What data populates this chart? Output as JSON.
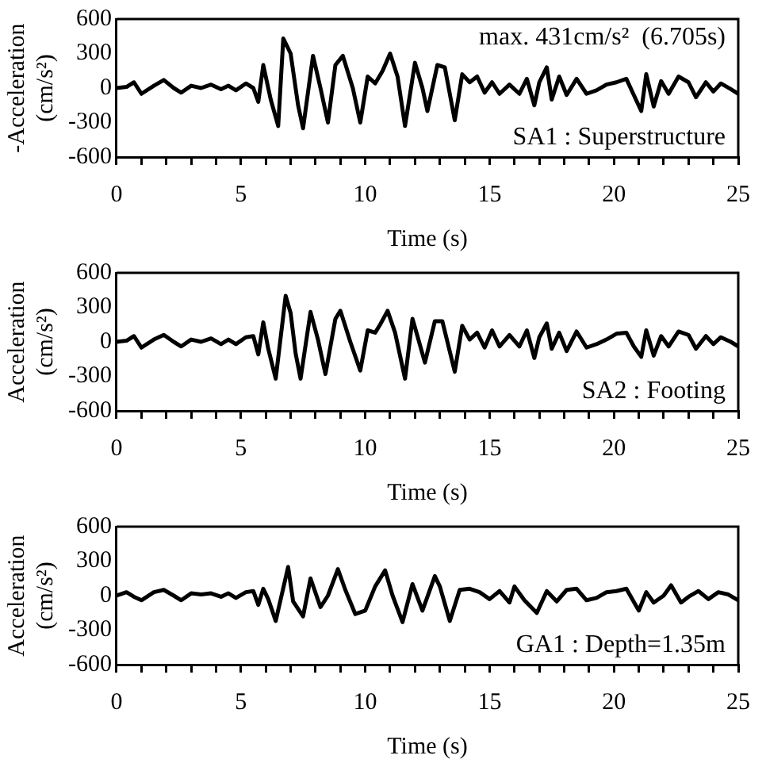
{
  "chart_data": [
    {
      "type": "line",
      "xlabel": "Time (s)",
      "ylabel": "-Acceleration\n(cm/s²)",
      "annotations": [
        "max. 431cm/s²  (6.705s)",
        "SA1 : Superstructure"
      ],
      "color": "#000000",
      "line_style": "solid",
      "marker": "none",
      "x": [
        0,
        0.4,
        0.7,
        1.0,
        1.5,
        1.9,
        2.3,
        2.6,
        3.0,
        3.4,
        3.8,
        4.2,
        4.5,
        4.8,
        5.2,
        5.5,
        5.7,
        5.9,
        6.2,
        6.5,
        6.705,
        7.0,
        7.3,
        7.5,
        7.9,
        8.2,
        8.5,
        8.8,
        9.1,
        9.5,
        9.8,
        10.1,
        10.4,
        10.7,
        11.0,
        11.3,
        11.6,
        12.0,
        12.3,
        12.5,
        12.9,
        13.2,
        13.6,
        13.9,
        14.2,
        14.5,
        14.8,
        15.1,
        15.4,
        15.8,
        16.2,
        16.5,
        16.8,
        17.0,
        17.3,
        17.5,
        17.8,
        18.1,
        18.5,
        18.9,
        19.3,
        19.7,
        20.1,
        20.5,
        20.8,
        21.1,
        21.3,
        21.6,
        21.9,
        22.2,
        22.6,
        23.0,
        23.3,
        23.7,
        24.0,
        24.3,
        24.7,
        25
      ],
      "values": [
        0,
        10,
        50,
        -50,
        20,
        70,
        0,
        -40,
        20,
        0,
        30,
        -10,
        20,
        -20,
        40,
        0,
        -120,
        200,
        -100,
        -330,
        431,
        300,
        -150,
        -350,
        280,
        0,
        -300,
        200,
        280,
        0,
        -300,
        100,
        40,
        150,
        300,
        100,
        -330,
        220,
        0,
        -200,
        200,
        180,
        -280,
        120,
        50,
        100,
        -40,
        50,
        -50,
        30,
        -50,
        80,
        -150,
        50,
        180,
        -100,
        100,
        -60,
        80,
        -50,
        -20,
        30,
        50,
        80,
        -60,
        -200,
        120,
        -160,
        60,
        -50,
        100,
        50,
        -80,
        50,
        -30,
        40,
        -10,
        -50
      ],
      "xlim": [
        0,
        25
      ],
      "xticks": [
        0,
        {
          "value": 1,
          "label": null
        },
        {
          "value": 2,
          "label": null
        },
        {
          "value": 3,
          "label": null
        },
        {
          "value": 4,
          "label": null
        },
        5,
        {
          "value": 6,
          "label": null
        },
        {
          "value": 7,
          "label": null
        },
        {
          "value": 8,
          "label": null
        },
        {
          "value": 9,
          "label": null
        },
        10,
        {
          "value": 11,
          "label": null
        },
        {
          "value": 12,
          "label": null
        },
        {
          "value": 13,
          "label": null
        },
        {
          "value": 14,
          "label": null
        },
        15,
        {
          "value": 16,
          "label": null
        },
        {
          "value": 17,
          "label": null
        },
        {
          "value": 18,
          "label": null
        },
        {
          "value": 19,
          "label": null
        },
        20,
        {
          "value": 21,
          "label": null
        },
        {
          "value": 22,
          "label": null
        },
        {
          "value": 23,
          "label": null
        },
        {
          "value": 24,
          "label": null
        },
        25
      ],
      "ylim": [
        -600,
        600
      ],
      "yticks": [
        -600,
        -300,
        0,
        300,
        600
      ]
    },
    {
      "type": "line",
      "xlabel": "Time (s)",
      "ylabel": "Acceleration\n(cm/s²)",
      "annotations": [
        "SA2 : Footing"
      ],
      "color": "#000000",
      "line_style": "solid",
      "marker": "none",
      "x": [
        0,
        0.4,
        0.7,
        1.0,
        1.5,
        1.9,
        2.3,
        2.6,
        3.0,
        3.4,
        3.8,
        4.2,
        4.5,
        4.8,
        5.2,
        5.5,
        5.7,
        5.9,
        6.1,
        6.4,
        6.8,
        7.0,
        7.2,
        7.4,
        7.8,
        8.1,
        8.4,
        8.8,
        9.0,
        9.4,
        9.8,
        10.1,
        10.4,
        10.6,
        10.9,
        11.2,
        11.6,
        11.9,
        12.1,
        12.4,
        12.8,
        13.1,
        13.6,
        13.9,
        14.2,
        14.5,
        14.8,
        15.1,
        15.4,
        15.8,
        16.2,
        16.5,
        16.8,
        17.0,
        17.3,
        17.5,
        17.8,
        18.1,
        18.5,
        18.9,
        19.3,
        19.7,
        20.1,
        20.5,
        20.8,
        21.1,
        21.3,
        21.6,
        21.9,
        22.2,
        22.6,
        23.0,
        23.3,
        23.7,
        24.0,
        24.3,
        24.7,
        25
      ],
      "values": [
        0,
        10,
        50,
        -50,
        20,
        60,
        0,
        -40,
        20,
        0,
        30,
        -20,
        20,
        -20,
        40,
        50,
        -110,
        170,
        -60,
        -320,
        400,
        250,
        -100,
        -320,
        260,
        20,
        -280,
        200,
        270,
        0,
        -250,
        100,
        80,
        150,
        270,
        80,
        -320,
        200,
        50,
        -180,
        180,
        180,
        -260,
        140,
        20,
        80,
        -50,
        100,
        -40,
        60,
        -40,
        100,
        -140,
        40,
        160,
        -60,
        80,
        -80,
        90,
        -50,
        -20,
        20,
        70,
        80,
        -40,
        -130,
        100,
        -120,
        50,
        -40,
        90,
        60,
        -60,
        50,
        -20,
        40,
        0,
        -40
      ],
      "xlim": [
        0,
        25
      ],
      "xticks": [
        0,
        {
          "value": 1,
          "label": null
        },
        {
          "value": 2,
          "label": null
        },
        {
          "value": 3,
          "label": null
        },
        {
          "value": 4,
          "label": null
        },
        5,
        {
          "value": 6,
          "label": null
        },
        {
          "value": 7,
          "label": null
        },
        {
          "value": 8,
          "label": null
        },
        {
          "value": 9,
          "label": null
        },
        10,
        {
          "value": 11,
          "label": null
        },
        {
          "value": 12,
          "label": null
        },
        {
          "value": 13,
          "label": null
        },
        {
          "value": 14,
          "label": null
        },
        15,
        {
          "value": 16,
          "label": null
        },
        {
          "value": 17,
          "label": null
        },
        {
          "value": 18,
          "label": null
        },
        {
          "value": 19,
          "label": null
        },
        20,
        {
          "value": 21,
          "label": null
        },
        {
          "value": 22,
          "label": null
        },
        {
          "value": 23,
          "label": null
        },
        {
          "value": 24,
          "label": null
        },
        25
      ],
      "ylim": [
        -600,
        600
      ],
      "yticks": [
        -600,
        -300,
        0,
        300,
        600
      ]
    },
    {
      "type": "line",
      "xlabel": "Time (s)",
      "ylabel": "Acceleration\n(cm/s²)",
      "annotations": [
        "GA1 : Depth=1.35m"
      ],
      "color": "#000000",
      "line_style": "solid",
      "marker": "none",
      "x": [
        0,
        0.4,
        0.7,
        1.0,
        1.5,
        1.9,
        2.3,
        2.6,
        3.0,
        3.4,
        3.8,
        4.2,
        4.5,
        4.8,
        5.2,
        5.5,
        5.7,
        5.9,
        6.1,
        6.4,
        6.9,
        7.1,
        7.5,
        7.8,
        8.2,
        8.5,
        8.9,
        9.2,
        9.6,
        10.0,
        10.4,
        10.8,
        11.1,
        11.5,
        11.9,
        12.3,
        12.8,
        13.0,
        13.4,
        13.8,
        14.2,
        14.6,
        15.0,
        15.4,
        15.8,
        16.0,
        16.4,
        16.9,
        17.3,
        17.7,
        18.1,
        18.5,
        18.9,
        19.3,
        19.7,
        20.1,
        20.5,
        21.0,
        21.3,
        21.6,
        22.0,
        22.3,
        22.7,
        23.0,
        23.4,
        23.8,
        24.2,
        24.6,
        25
      ],
      "values": [
        0,
        30,
        -10,
        -40,
        30,
        50,
        0,
        -40,
        20,
        10,
        20,
        -10,
        20,
        -20,
        30,
        40,
        -80,
        60,
        -30,
        -220,
        250,
        -50,
        -180,
        150,
        -100,
        0,
        230,
        50,
        -160,
        -130,
        80,
        220,
        0,
        -230,
        100,
        -130,
        170,
        80,
        -220,
        50,
        60,
        30,
        -30,
        40,
        -60,
        80,
        -40,
        -150,
        40,
        -50,
        50,
        60,
        -40,
        -20,
        30,
        40,
        60,
        -130,
        30,
        -60,
        0,
        90,
        -60,
        -10,
        40,
        -30,
        30,
        10,
        -40
      ],
      "xlim": [
        0,
        25
      ],
      "xticks": [
        0,
        {
          "value": 1,
          "label": null
        },
        {
          "value": 2,
          "label": null
        },
        {
          "value": 3,
          "label": null
        },
        {
          "value": 4,
          "label": null
        },
        5,
        {
          "value": 6,
          "label": null
        },
        {
          "value": 7,
          "label": null
        },
        {
          "value": 8,
          "label": null
        },
        {
          "value": 9,
          "label": null
        },
        10,
        {
          "value": 11,
          "label": null
        },
        {
          "value": 12,
          "label": null
        },
        {
          "value": 13,
          "label": null
        },
        {
          "value": 14,
          "label": null
        },
        15,
        {
          "value": 16,
          "label": null
        },
        {
          "value": 17,
          "label": null
        },
        {
          "value": 18,
          "label": null
        },
        {
          "value": 19,
          "label": null
        },
        20,
        {
          "value": 21,
          "label": null
        },
        {
          "value": 22,
          "label": null
        },
        {
          "value": 23,
          "label": null
        },
        {
          "value": 24,
          "label": null
        },
        25
      ],
      "ylim": [
        -600,
        600
      ],
      "yticks": [
        -600,
        -300,
        0,
        300,
        600
      ]
    }
  ]
}
